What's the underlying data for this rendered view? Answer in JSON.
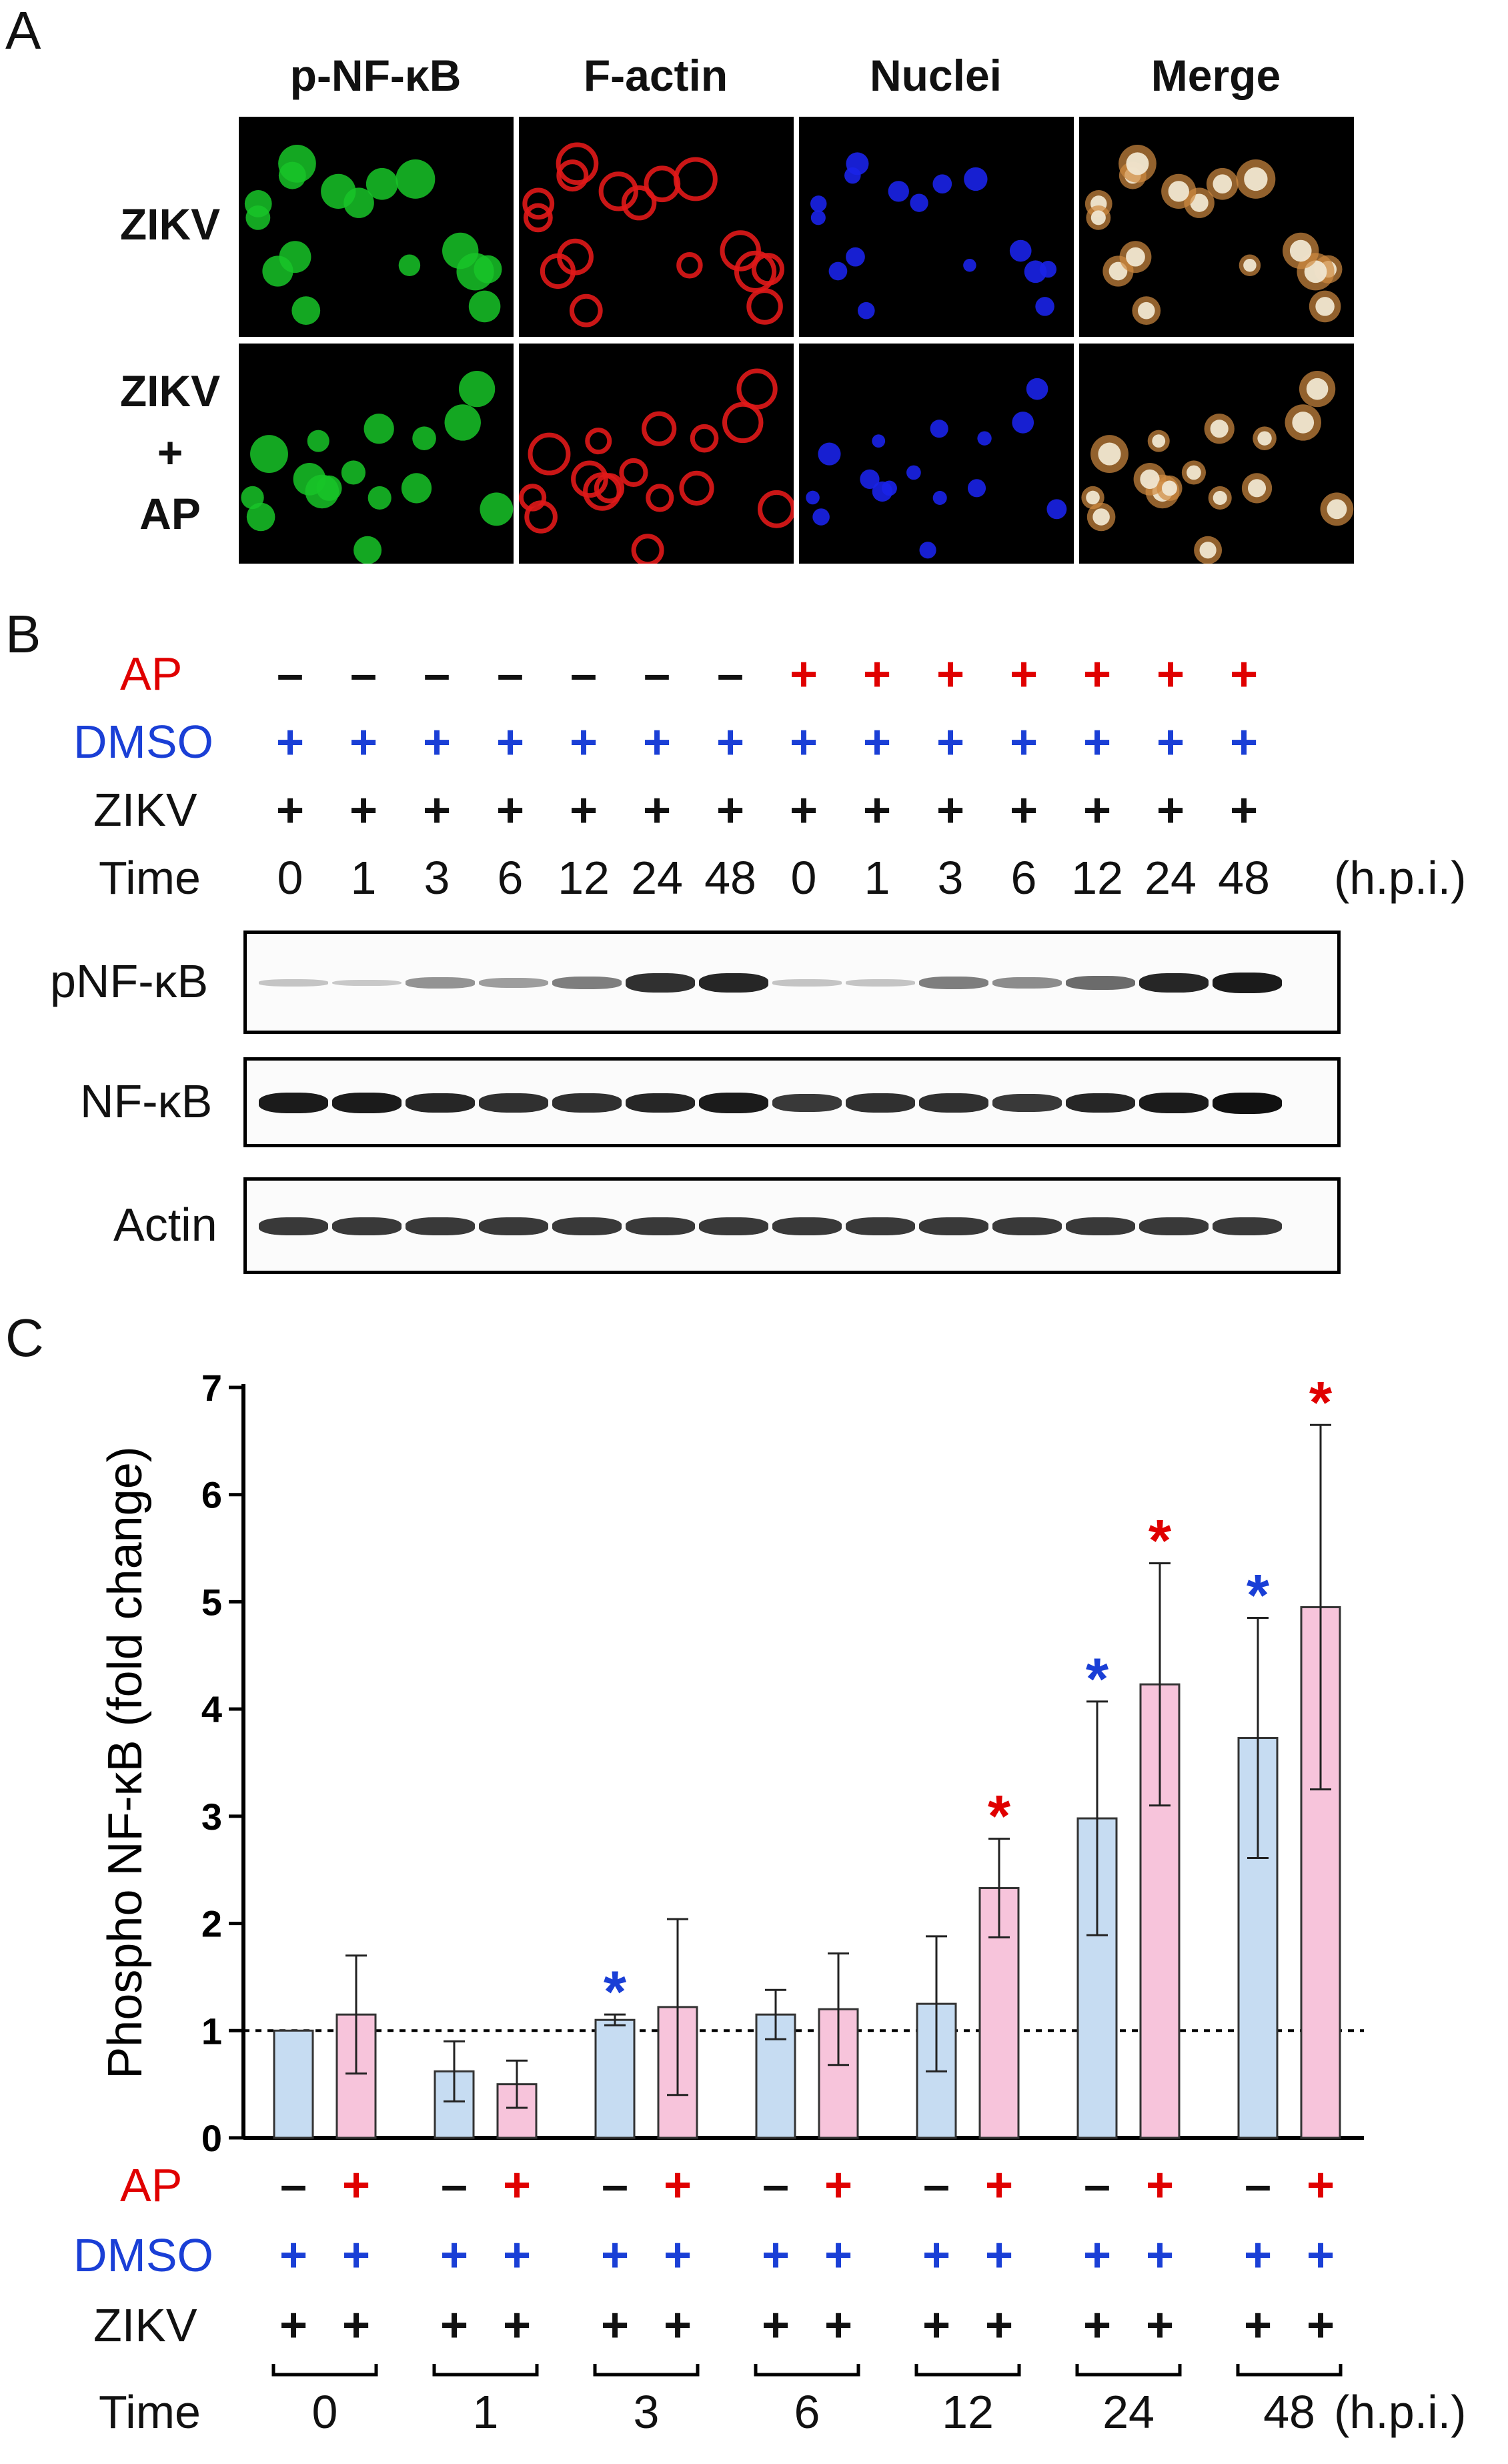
{
  "panels": {
    "a": "A",
    "b": "B",
    "c": "C"
  },
  "panel_a": {
    "columns": [
      "p-NF-κB",
      "F-actin",
      "Nuclei",
      "Merge"
    ],
    "rows": [
      {
        "lines": [
          "ZIKV"
        ]
      },
      {
        "lines": [
          "ZIKV",
          "+",
          "AP"
        ]
      }
    ],
    "colors": {
      "p-NF-κB": "#18c428",
      "F-actin": "#e01818",
      "Nuclei": "#1a22e8",
      "Merge": "#f0e6d0"
    }
  },
  "panel_b": {
    "labels": {
      "ap": "AP",
      "dmso": "DMSO",
      "zikv": "ZIKV",
      "time": "Time",
      "unit": "(h.p.i.)"
    },
    "ap": [
      "–",
      "–",
      "–",
      "–",
      "–",
      "–",
      "–",
      "+",
      "+",
      "+",
      "+",
      "+",
      "+",
      "+"
    ],
    "dmso": [
      "+",
      "+",
      "+",
      "+",
      "+",
      "+",
      "+",
      "+",
      "+",
      "+",
      "+",
      "+",
      "+",
      "+"
    ],
    "zikv": [
      "+",
      "+",
      "+",
      "+",
      "+",
      "+",
      "+",
      "+",
      "+",
      "+",
      "+",
      "+",
      "+",
      "+"
    ],
    "times": [
      "0",
      "1",
      "3",
      "6",
      "12",
      "24",
      "48",
      "0",
      "1",
      "3",
      "6",
      "12",
      "24",
      "48"
    ],
    "blots": [
      {
        "label": "pNF-κB",
        "intensity": [
          0.1,
          0.08,
          0.35,
          0.3,
          0.45,
          0.85,
          0.9,
          0.1,
          0.1,
          0.45,
          0.38,
          0.55,
          0.9,
          0.95
        ]
      },
      {
        "label": "NF-κB",
        "intensity": [
          0.95,
          0.95,
          0.9,
          0.85,
          0.85,
          0.9,
          0.95,
          0.8,
          0.85,
          0.85,
          0.8,
          0.9,
          0.95,
          1.0
        ]
      },
      {
        "label": "Actin",
        "intensity": [
          0.8,
          0.8,
          0.8,
          0.8,
          0.8,
          0.8,
          0.8,
          0.8,
          0.8,
          0.8,
          0.8,
          0.8,
          0.8,
          0.8
        ]
      }
    ]
  },
  "chart_data": {
    "type": "bar",
    "ylabel": "Phospho NF-κB (fold change)",
    "ylim": [
      0,
      7
    ],
    "yticks": [
      "0",
      "1",
      "2",
      "3",
      "4",
      "5",
      "6",
      "7"
    ],
    "reference_line": 1,
    "categories": [
      "0",
      "1",
      "3",
      "6",
      "12",
      "24",
      "48"
    ],
    "series": [
      {
        "color": "#c6dcf2",
        "values": [
          1.0,
          0.62,
          1.1,
          1.15,
          1.25,
          2.98,
          3.73
        ],
        "errors": [
          0,
          0.28,
          0.05,
          0.23,
          0.63,
          1.09,
          1.12
        ],
        "significant": [
          false,
          false,
          true,
          false,
          false,
          true,
          true
        ],
        "star_color": "#1a3fd6"
      },
      {
        "color": "#f7c4db",
        "values": [
          1.15,
          0.5,
          1.22,
          1.2,
          2.33,
          4.23,
          4.95
        ],
        "errors": [
          0.55,
          0.22,
          0.82,
          0.52,
          0.46,
          1.13,
          1.7
        ],
        "significant": [
          false,
          false,
          false,
          false,
          true,
          true,
          true
        ],
        "star_color": "#e00000"
      }
    ],
    "star": "*",
    "bottom": {
      "labels": {
        "ap": "AP",
        "dmso": "DMSO",
        "zikv": "ZIKV",
        "time": "Time",
        "unit": "(h.p.i.)"
      },
      "ap_pair": [
        "–",
        "+"
      ],
      "dmso_pair": [
        "+",
        "+"
      ],
      "zikv_pair": [
        "+",
        "+"
      ]
    }
  }
}
